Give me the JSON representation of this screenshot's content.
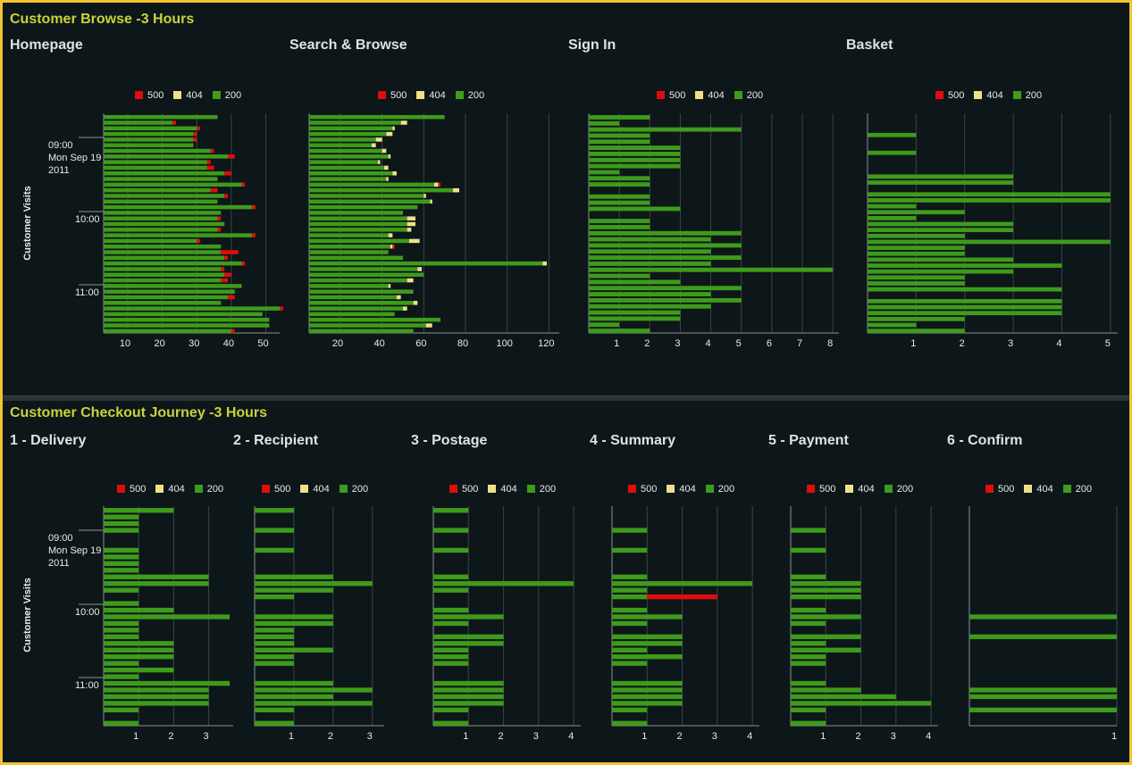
{
  "colors": {
    "c500": "#e00d0d",
    "c404": "#efe08a",
    "c200": "#3e9b1b",
    "grid": "#3a4447",
    "axis": "#8a9395",
    "text": "#e8ecec"
  },
  "legend": [
    {
      "label": "500",
      "color": "#e00d0d"
    },
    {
      "label": "404",
      "color": "#efe08a"
    },
    {
      "label": "200",
      "color": "#3e9b1b"
    }
  ],
  "top": {
    "title": "Customer Browse -3 Hours",
    "ylabel": "Customer Visits",
    "time_labels": [
      "09:00",
      "Mon Sep 19",
      "2011",
      "10:00",
      "11:00"
    ]
  },
  "bottom": {
    "title": "Customer Checkout Journey -3 Hours",
    "ylabel": "Customer Visits",
    "time_labels": [
      "09:00",
      "Mon Sep 19",
      "2011",
      "10:00",
      "11:00"
    ]
  },
  "chart_data": [
    {
      "type": "bar",
      "title": "Homepage",
      "xticks": [
        10,
        20,
        30,
        40,
        50
      ],
      "xlim": [
        3,
        54
      ],
      "series": [
        {
          "name": "200",
          "values": [
            33,
            20,
            27,
            26,
            26,
            26,
            31,
            36,
            30,
            30,
            35,
            33,
            40,
            31,
            35,
            33,
            43,
            34,
            33,
            35,
            33,
            43,
            27,
            34,
            34,
            35,
            40,
            34,
            35,
            34,
            40,
            38,
            36,
            34,
            51,
            46,
            48,
            48,
            37
          ]
        },
        {
          "name": "404",
          "values": [
            0,
            0,
            0,
            0,
            0,
            0,
            0,
            0,
            0,
            0,
            0,
            0,
            0,
            0,
            0,
            0,
            0,
            0,
            0,
            0,
            0,
            0,
            0,
            0,
            0,
            0,
            0,
            0,
            0,
            0,
            0,
            0,
            0,
            0,
            0,
            0,
            0,
            0,
            0
          ]
        },
        {
          "name": "500",
          "values": [
            0,
            1,
            1,
            1,
            1,
            0,
            1,
            2,
            1,
            2,
            2,
            0,
            1,
            2,
            1,
            0,
            1,
            0,
            1,
            0,
            1,
            1,
            1,
            0,
            5,
            1,
            1,
            1,
            2,
            2,
            0,
            0,
            2,
            0,
            1,
            0,
            0,
            0,
            1
          ]
        }
      ]
    },
    {
      "type": "bar",
      "title": "Search & Browse",
      "xticks": [
        20,
        40,
        60,
        80,
        100,
        120
      ],
      "xlim": [
        5,
        125
      ],
      "series": [
        {
          "name": "200",
          "values": [
            65,
            44,
            40,
            37,
            32,
            30,
            35,
            38,
            33,
            36,
            40,
            37,
            60,
            69,
            55,
            58,
            52,
            45,
            47,
            47,
            47,
            38,
            48,
            39,
            38,
            45,
            112,
            52,
            55,
            47,
            38,
            50,
            42,
            50,
            45,
            41,
            63,
            56,
            50
          ]
        },
        {
          "name": "404",
          "values": [
            0,
            3,
            1,
            3,
            3,
            2,
            2,
            1,
            1,
            2,
            2,
            1,
            2,
            3,
            1,
            1,
            0,
            0,
            4,
            4,
            2,
            2,
            5,
            1,
            0,
            0,
            2,
            2,
            0,
            3,
            1,
            0,
            2,
            2,
            2,
            0,
            0,
            3,
            0
          ]
        },
        {
          "name": "500",
          "values": [
            0,
            0,
            0,
            0,
            0,
            0,
            0,
            0,
            0,
            0,
            0,
            0,
            1,
            0,
            0,
            0,
            0,
            0,
            0,
            0,
            0,
            0,
            0,
            1,
            0,
            0,
            0,
            0,
            0,
            0,
            0,
            0,
            0,
            0,
            0,
            0,
            0,
            0,
            0
          ]
        }
      ]
    },
    {
      "type": "bar",
      "title": "Sign In",
      "xticks": [
        1,
        2,
        3,
        4,
        5,
        6,
        7,
        8
      ],
      "xlim": [
        0,
        8.2
      ],
      "series": [
        {
          "name": "200",
          "values": [
            2,
            1,
            5,
            2,
            2,
            3,
            3,
            3,
            3,
            1,
            2,
            2,
            0,
            2,
            2,
            3,
            0,
            2,
            2,
            5,
            4,
            5,
            4,
            5,
            4,
            8,
            2,
            3,
            5,
            4,
            5,
            4,
            3,
            3,
            1,
            2
          ]
        }
      ]
    },
    {
      "type": "bar",
      "title": "Basket",
      "xticks": [
        1,
        2,
        3,
        4,
        5
      ],
      "xlim": [
        0,
        5.15
      ],
      "series": [
        {
          "name": "200",
          "values": [
            0,
            0,
            0,
            1,
            0,
            0,
            1,
            0,
            0,
            0,
            3,
            3,
            0,
            5,
            5,
            1,
            2,
            1,
            3,
            3,
            2,
            5,
            2,
            2,
            3,
            4,
            3,
            2,
            2,
            4,
            0,
            4,
            4,
            4,
            2,
            1,
            2
          ]
        }
      ]
    },
    {
      "type": "bar",
      "title": "1 - Delivery",
      "xticks": [
        1,
        2,
        3
      ],
      "xlim": [
        0,
        3.7
      ],
      "series": [
        {
          "name": "200",
          "values": [
            2,
            1,
            1,
            1,
            0,
            0,
            1,
            1,
            1,
            1,
            3,
            3,
            1,
            0,
            1,
            2,
            3.6,
            1,
            1,
            1,
            2,
            2,
            2,
            1,
            2,
            1,
            3.6,
            3,
            3,
            3,
            1,
            0,
            1
          ]
        }
      ]
    },
    {
      "type": "bar",
      "title": "2 - Recipient",
      "xticks": [
        1,
        2,
        3
      ],
      "xlim": [
        0,
        3.3
      ],
      "series": [
        {
          "name": "200",
          "values": [
            1,
            0,
            0,
            1,
            0,
            0,
            1,
            0,
            0,
            0,
            2,
            3,
            2,
            1,
            0,
            0,
            2,
            2,
            1,
            1,
            1,
            2,
            1,
            1,
            0,
            0,
            2,
            3,
            2,
            3,
            1,
            0,
            1
          ]
        }
      ]
    },
    {
      "type": "bar",
      "title": "3 - Postage",
      "xticks": [
        1,
        2,
        3,
        4
      ],
      "xlim": [
        0,
        4.2
      ],
      "series": [
        {
          "name": "200",
          "values": [
            1,
            0,
            0,
            1,
            0,
            0,
            1,
            0,
            0,
            0,
            1,
            4,
            1,
            0,
            0,
            1,
            2,
            1,
            0,
            2,
            2,
            1,
            1,
            1,
            0,
            0,
            2,
            2,
            2,
            2,
            1,
            0,
            1
          ]
        }
      ]
    },
    {
      "type": "bar",
      "title": "4 - Summary",
      "xticks": [
        1,
        2,
        3,
        4
      ],
      "xlim": [
        0,
        4.2
      ],
      "series": [
        {
          "name": "200",
          "values": [
            0,
            0,
            0,
            1,
            0,
            0,
            1,
            0,
            0,
            0,
            1,
            4,
            1,
            1,
            0,
            1,
            2,
            1,
            0,
            2,
            2,
            1,
            2,
            1,
            0,
            0,
            2,
            2,
            2,
            2,
            1,
            0,
            1
          ]
        },
        {
          "name": "500",
          "values": [
            0,
            0,
            0,
            0,
            0,
            0,
            0,
            0,
            0,
            0,
            0,
            0,
            0,
            2,
            0,
            0,
            0,
            0,
            0,
            0,
            0,
            0,
            0,
            0,
            0,
            0,
            0,
            0,
            0,
            0,
            0,
            0,
            0
          ]
        }
      ]
    },
    {
      "type": "bar",
      "title": "5 - Payment",
      "xticks": [
        1,
        2,
        3,
        4
      ],
      "xlim": [
        0,
        4.2
      ],
      "series": [
        {
          "name": "200",
          "values": [
            0,
            0,
            0,
            1,
            0,
            0,
            1,
            0,
            0,
            0,
            1,
            2,
            2,
            2,
            0,
            1,
            2,
            1,
            0,
            2,
            1,
            2,
            1,
            1,
            0,
            0,
            1,
            2,
            3,
            4,
            1,
            0,
            1
          ]
        }
      ]
    },
    {
      "type": "bar",
      "title": "6 - Confirm",
      "xticks": [
        1
      ],
      "xlim": [
        0,
        1.0
      ],
      "series": [
        {
          "name": "200",
          "values": [
            0,
            0,
            0,
            0,
            0,
            0,
            0,
            0,
            0,
            0,
            0,
            0,
            0,
            0,
            0,
            0,
            1,
            0,
            0,
            1,
            0,
            0,
            0,
            0,
            0,
            0,
            0,
            1,
            1,
            0,
            1,
            0,
            0
          ]
        }
      ]
    }
  ]
}
